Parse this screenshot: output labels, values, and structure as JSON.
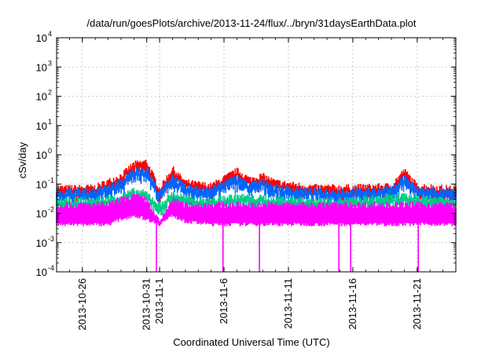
{
  "chart_data": {
    "type": "line",
    "title": "/data/run/goesPlots/archive/2013-11-24/flux/../bryn/31daysEarthData.plot",
    "xlabel": "Coordinated Universal Time (UTC)",
    "ylabel": "cSv/day",
    "yscale": "log",
    "ylim": [
      0.0001,
      10000
    ],
    "xlim": [
      "2013-10-24",
      "2013-11-24"
    ],
    "grid": true,
    "y_tick_labels": [
      {
        "base": "10",
        "exp": "-4",
        "value": 0.0001
      },
      {
        "base": "10",
        "exp": "-3",
        "value": 0.001
      },
      {
        "base": "10",
        "exp": "-2",
        "value": 0.01
      },
      {
        "base": "10",
        "exp": "-1",
        "value": 0.1
      },
      {
        "base": "10",
        "exp": "0",
        "value": 1
      },
      {
        "base": "10",
        "exp": "1",
        "value": 10
      },
      {
        "base": "10",
        "exp": "2",
        "value": 100
      },
      {
        "base": "10",
        "exp": "3",
        "value": 1000
      },
      {
        "base": "10",
        "exp": "4",
        "value": 10000
      }
    ],
    "x_tick_labels": [
      {
        "label": "2013-10-26",
        "date": "2013-10-26"
      },
      {
        "label": "2013-10-31",
        "date": "2013-10-31"
      },
      {
        "label": "2013-11-1",
        "date": "2013-11-01"
      },
      {
        "label": "2013-11-6",
        "date": "2013-11-06"
      },
      {
        "label": "2013-11-11",
        "date": "2013-11-11"
      },
      {
        "label": "2013-11-16",
        "date": "2013-11-16"
      },
      {
        "label": "2013-11-21",
        "date": "2013-11-21"
      }
    ],
    "series": [
      {
        "color": "#ff0000",
        "x": [
          "2013-10-24",
          "2013-10-27",
          "2013-10-29",
          "2013-10-30",
          "2013-10-31",
          "2013-11-01",
          "2013-11-02",
          "2013-11-03",
          "2013-11-05",
          "2013-11-07",
          "2013-11-08",
          "2013-11-09",
          "2013-11-10",
          "2013-11-13",
          "2013-11-16",
          "2013-11-19",
          "2013-11-20",
          "2013-11-21",
          "2013-11-24"
        ],
        "y": [
          0.075,
          0.08,
          0.2,
          0.5,
          0.6,
          0.07,
          0.35,
          0.12,
          0.09,
          0.3,
          0.15,
          0.2,
          0.12,
          0.08,
          0.08,
          0.09,
          0.3,
          0.09,
          0.07
        ]
      },
      {
        "color": "#0066ff",
        "x": [
          "2013-10-24",
          "2013-10-27",
          "2013-10-29",
          "2013-10-30",
          "2013-10-31",
          "2013-11-01",
          "2013-11-02",
          "2013-11-03",
          "2013-11-05",
          "2013-11-07",
          "2013-11-08",
          "2013-11-09",
          "2013-11-10",
          "2013-11-13",
          "2013-11-16",
          "2013-11-19",
          "2013-11-20",
          "2013-11-21",
          "2013-11-24"
        ],
        "y": [
          0.06,
          0.06,
          0.12,
          0.3,
          0.35,
          0.05,
          0.2,
          0.08,
          0.07,
          0.18,
          0.1,
          0.13,
          0.08,
          0.06,
          0.06,
          0.07,
          0.18,
          0.07,
          0.055
        ]
      },
      {
        "color": "#00cc88",
        "x": [
          "2013-10-24",
          "2013-10-27",
          "2013-10-29",
          "2013-10-30",
          "2013-10-31",
          "2013-11-01",
          "2013-11-02",
          "2013-11-03",
          "2013-11-05",
          "2013-11-07",
          "2013-11-09",
          "2013-11-13",
          "2013-11-16",
          "2013-11-20",
          "2013-11-24"
        ],
        "y": [
          0.03,
          0.03,
          0.04,
          0.06,
          0.05,
          0.02,
          0.05,
          0.035,
          0.03,
          0.04,
          0.035,
          0.03,
          0.03,
          0.04,
          0.03
        ]
      },
      {
        "color": "#ff00ff",
        "x": [
          "2013-10-24",
          "2013-10-27",
          "2013-10-28",
          "2013-10-29",
          "2013-10-30",
          "2013-10-31",
          "2013-11-01",
          "2013-11-02",
          "2013-11-03",
          "2013-11-05",
          "2013-11-07",
          "2013-11-10",
          "2013-11-13",
          "2013-11-16",
          "2013-11-20",
          "2013-11-24"
        ],
        "y": [
          0.02,
          0.02,
          0.02,
          0.03,
          0.04,
          0.03,
          0.005,
          0.03,
          0.02,
          0.02,
          0.02,
          0.02,
          0.02,
          0.02,
          0.02,
          0.02
        ],
        "min": [
          0.004,
          0.004,
          0.004,
          0.006,
          0.008,
          0.006,
          0.004,
          0.008,
          0.005,
          0.004,
          0.004,
          0.004,
          0.004,
          0.004,
          0.004,
          0.004
        ],
        "dropouts": [
          "2013-10-31T18:00",
          "2013-11-05T22:00",
          "2013-11-08T18:00",
          "2013-11-14T22:00",
          "2013-11-15T20:00",
          "2013-11-21T02:00"
        ]
      }
    ]
  }
}
